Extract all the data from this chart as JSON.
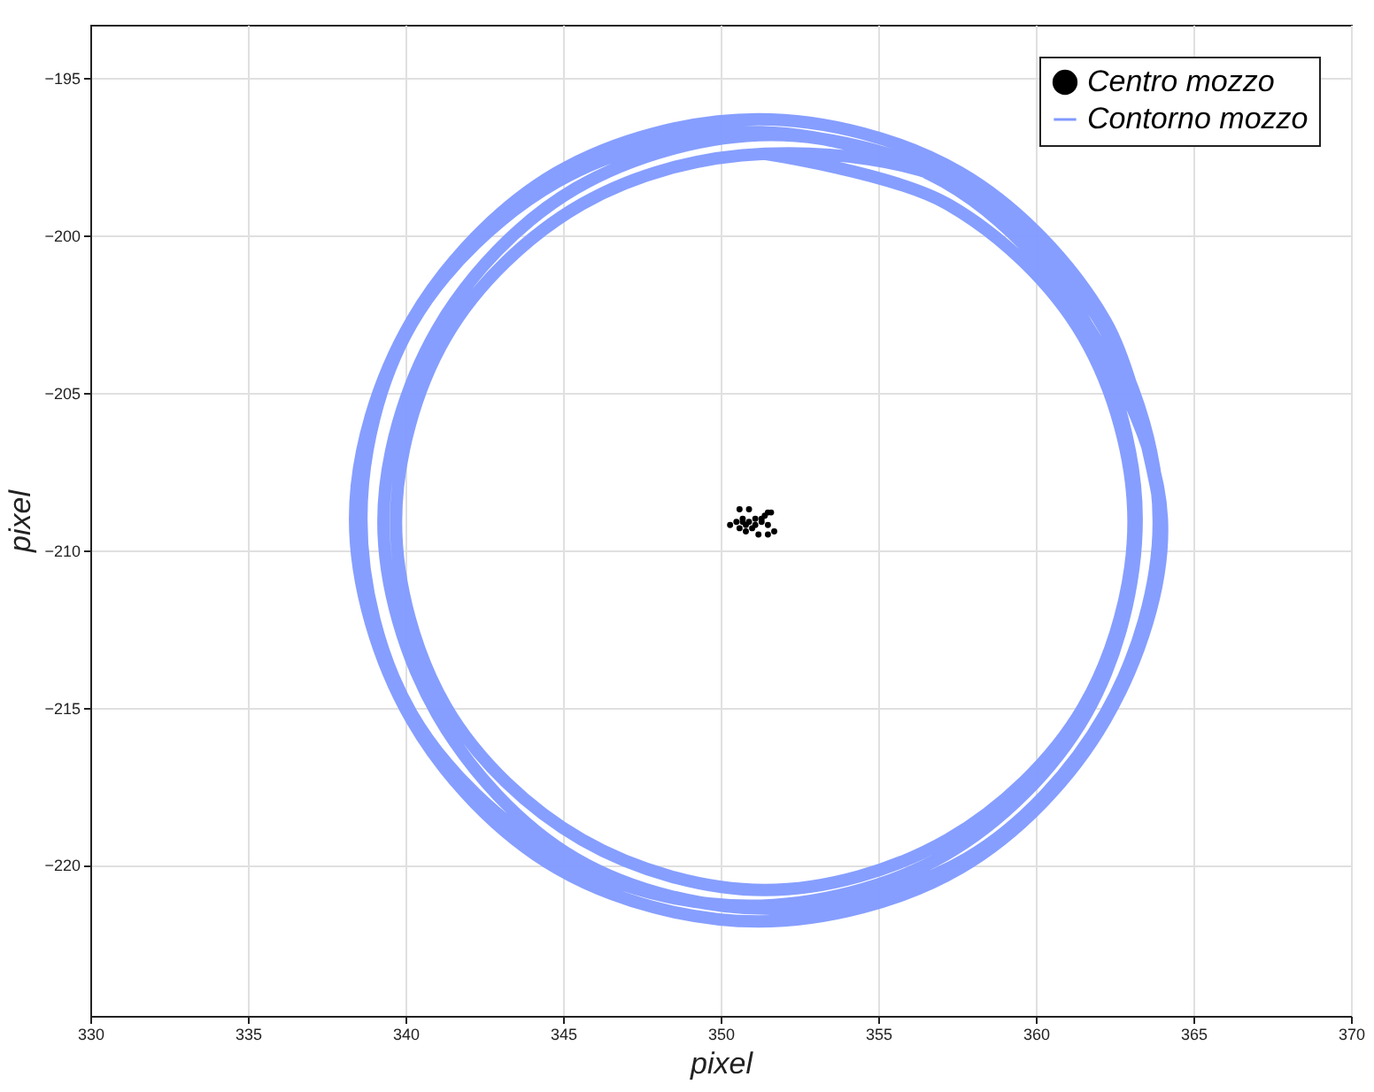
{
  "chart_data": {
    "type": "line",
    "xlabel": "pixel",
    "ylabel": "pixel",
    "xlim": [
      330,
      370
    ],
    "xticks": [
      330,
      335,
      340,
      345,
      350,
      355,
      360,
      365,
      370
    ],
    "ylim": [
      -224.8,
      -193.3
    ],
    "yticks": [
      -220,
      -215,
      -210,
      -205,
      -200,
      -195
    ],
    "grid": true,
    "legend": "top right",
    "line_style": "solid",
    "series": [
      {
        "name": "Centro mozzo",
        "type": "scatter",
        "marker": "circle",
        "color": "#000000",
        "x": [
          350.3,
          350.5,
          350.6,
          350.7,
          350.8,
          350.9,
          351.0,
          351.1,
          351.2,
          351.3,
          351.4,
          351.5,
          351.6,
          351.7,
          350.6,
          350.9,
          351.5,
          350.8,
          351.3,
          351.5,
          350.7,
          351.1
        ],
        "values": [
          -209.2,
          -209.1,
          -209.3,
          -209.0,
          -209.2,
          -209.1,
          -209.3,
          -209.0,
          -209.5,
          -209.1,
          -208.9,
          -209.2,
          -208.8,
          -209.4,
          -208.7,
          -208.7,
          -208.8,
          -209.4,
          -209.0,
          -209.5,
          -209.1,
          -209.2
        ]
      },
      {
        "name": "Contorno mozzo",
        "type": "line",
        "color": "#8099ff",
        "x": [
          364.0,
          362.2,
          357.6,
          351.2,
          344.8,
          340.2,
          338.4,
          340.2,
          344.8,
          351.2,
          357.6,
          362.2,
          364.0,
          361.6,
          357.1,
          350.9,
          344.8,
          340.2,
          338.6,
          340.2,
          344.8,
          350.9,
          357.1,
          361.6,
          363.2,
          361.6,
          357.8,
          351.6,
          345.4,
          341.0,
          339.3,
          341.0,
          345.4,
          351.6,
          357.8,
          362.2,
          363.9,
          362.2,
          357.8,
          351.4,
          345.6,
          341.3,
          339.7,
          341.3,
          345.6,
          351.4,
          357.2,
          361.5,
          363.1,
          361.5,
          357.2,
          351.4
        ],
        "values": [
          -209.0,
          -202.7,
          -198.0,
          -196.3,
          -198.0,
          -202.7,
          -209.0,
          -215.4,
          -220.1,
          -221.8,
          -220.1,
          -215.4,
          -209.0,
          -202.8,
          -198.3,
          -196.7,
          -198.3,
          -202.8,
          -209.0,
          -215.2,
          -219.7,
          -221.3,
          -219.7,
          -215.2,
          -209.0,
          -202.8,
          -198.5,
          -196.8,
          -198.5,
          -203.0,
          -209.1,
          -215.2,
          -219.8,
          -221.4,
          -219.8,
          -215.2,
          -209.1,
          -203.0,
          -198.5,
          -197.4,
          -199.0,
          -203.2,
          -209.1,
          -215.0,
          -219.2,
          -220.8,
          -219.2,
          -215.0,
          -209.1,
          -203.2,
          -199.0,
          -197.4
        ]
      }
    ]
  }
}
